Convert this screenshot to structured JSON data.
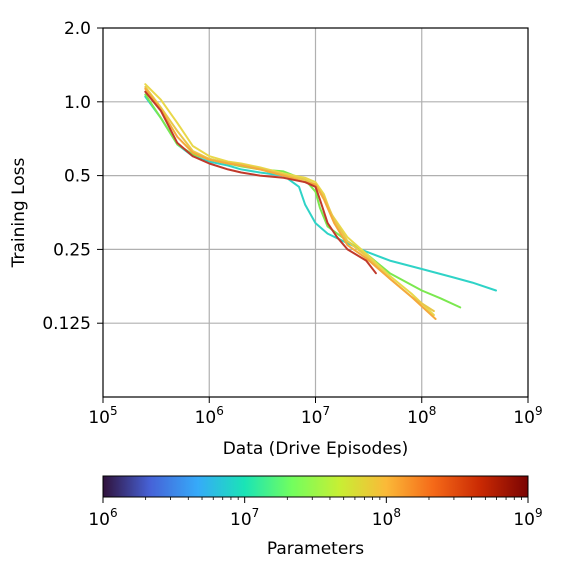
{
  "chart_data": {
    "type": "line",
    "title": "",
    "xlabel": "Data (Drive Episodes)",
    "ylabel": "Training Loss",
    "xscale": "log",
    "yscale": "log",
    "xlim": [
      100000,
      1000000000
    ],
    "ylim": [
      0.0625,
      2.0
    ],
    "grid": true,
    "x_ticks": [
      {
        "value": 100000,
        "base": "10",
        "exp": "5"
      },
      {
        "value": 1000000,
        "base": "10",
        "exp": "6"
      },
      {
        "value": 10000000,
        "base": "10",
        "exp": "7"
      },
      {
        "value": 100000000,
        "base": "10",
        "exp": "8"
      },
      {
        "value": 1000000000,
        "base": "10",
        "exp": "9"
      }
    ],
    "y_ticks": [
      {
        "value": 2.0,
        "label": "2.0"
      },
      {
        "value": 1.0,
        "label": "1.0"
      },
      {
        "value": 0.5,
        "label": "0.5"
      },
      {
        "value": 0.25,
        "label": "0.25"
      },
      {
        "value": 0.125,
        "label": "0.125"
      }
    ],
    "series": [
      {
        "color": "#2fd3c7",
        "points": [
          [
            250000,
            1.05
          ],
          [
            350000,
            0.86
          ],
          [
            500000,
            0.67
          ],
          [
            700000,
            0.6
          ],
          [
            1000000,
            0.57
          ],
          [
            1500000,
            0.55
          ],
          [
            2000000,
            0.53
          ],
          [
            3000000,
            0.515
          ],
          [
            5000000,
            0.5
          ],
          [
            7000000,
            0.45
          ],
          [
            8000000,
            0.38
          ],
          [
            10000000,
            0.32
          ],
          [
            13000000,
            0.29
          ],
          [
            20000000,
            0.265
          ],
          [
            30000000,
            0.245
          ],
          [
            50000000,
            0.225
          ],
          [
            100000000,
            0.208
          ],
          [
            200000000,
            0.192
          ],
          [
            300000000,
            0.183
          ],
          [
            500000000,
            0.17
          ]
        ]
      },
      {
        "color": "#7be84f",
        "points": [
          [
            250000,
            1.07
          ],
          [
            350000,
            0.86
          ],
          [
            500000,
            0.67
          ],
          [
            700000,
            0.61
          ],
          [
            1000000,
            0.585
          ],
          [
            1500000,
            0.56
          ],
          [
            2000000,
            0.545
          ],
          [
            3000000,
            0.53
          ],
          [
            5000000,
            0.52
          ],
          [
            8000000,
            0.48
          ],
          [
            10000000,
            0.43
          ],
          [
            11000000,
            0.37
          ],
          [
            13000000,
            0.31
          ],
          [
            20000000,
            0.27
          ],
          [
            30000000,
            0.24
          ],
          [
            50000000,
            0.2
          ],
          [
            100000000,
            0.17
          ],
          [
            150000000,
            0.158
          ],
          [
            230000000,
            0.145
          ]
        ]
      },
      {
        "color": "#e9d84a",
        "points": [
          [
            250000,
            1.18
          ],
          [
            350000,
            1.02
          ],
          [
            500000,
            0.82
          ],
          [
            700000,
            0.66
          ],
          [
            1000000,
            0.6
          ],
          [
            1500000,
            0.57
          ],
          [
            2000000,
            0.56
          ],
          [
            3000000,
            0.54
          ],
          [
            5000000,
            0.51
          ],
          [
            8000000,
            0.49
          ],
          [
            10000000,
            0.47
          ],
          [
            12000000,
            0.42
          ],
          [
            14000000,
            0.35
          ],
          [
            20000000,
            0.28
          ],
          [
            30000000,
            0.24
          ],
          [
            50000000,
            0.195
          ],
          [
            80000000,
            0.165
          ],
          [
            130000000,
            0.135
          ]
        ]
      },
      {
        "color": "#e8c84a",
        "points": [
          [
            250000,
            1.15
          ],
          [
            350000,
            0.95
          ],
          [
            500000,
            0.76
          ],
          [
            700000,
            0.63
          ],
          [
            1000000,
            0.585
          ],
          [
            1500000,
            0.565
          ],
          [
            2000000,
            0.555
          ],
          [
            3000000,
            0.535
          ],
          [
            5000000,
            0.505
          ],
          [
            8000000,
            0.48
          ],
          [
            10000000,
            0.46
          ],
          [
            12000000,
            0.41
          ],
          [
            15000000,
            0.33
          ],
          [
            20000000,
            0.27
          ],
          [
            30000000,
            0.235
          ],
          [
            50000000,
            0.19
          ],
          [
            80000000,
            0.16
          ],
          [
            130000000,
            0.14
          ]
        ]
      },
      {
        "color": "#f5a93c",
        "points": [
          [
            250000,
            1.13
          ],
          [
            350000,
            0.93
          ],
          [
            500000,
            0.72
          ],
          [
            700000,
            0.62
          ],
          [
            1000000,
            0.58
          ],
          [
            1500000,
            0.56
          ],
          [
            2000000,
            0.55
          ],
          [
            3000000,
            0.53
          ],
          [
            5000000,
            0.5
          ],
          [
            8000000,
            0.47
          ],
          [
            10000000,
            0.46
          ],
          [
            12000000,
            0.4
          ],
          [
            15000000,
            0.32
          ],
          [
            20000000,
            0.26
          ],
          [
            30000000,
            0.23
          ],
          [
            50000000,
            0.19
          ],
          [
            80000000,
            0.16
          ],
          [
            135000000,
            0.13
          ]
        ]
      },
      {
        "color": "#c0392b",
        "points": [
          [
            250000,
            1.1
          ],
          [
            350000,
            0.92
          ],
          [
            500000,
            0.68
          ],
          [
            700000,
            0.6
          ],
          [
            1000000,
            0.56
          ],
          [
            1500000,
            0.53
          ],
          [
            2000000,
            0.515
          ],
          [
            3000000,
            0.5
          ],
          [
            5000000,
            0.49
          ],
          [
            8000000,
            0.47
          ],
          [
            10000000,
            0.45
          ],
          [
            11000000,
            0.4
          ],
          [
            13000000,
            0.32
          ],
          [
            16000000,
            0.28
          ],
          [
            20000000,
            0.25
          ],
          [
            30000000,
            0.225
          ],
          [
            37000000,
            0.2
          ]
        ]
      }
    ],
    "colorbar": {
      "label": "Parameters",
      "scale": "log",
      "range": [
        1000000,
        1000000000
      ],
      "colormap": "turbo",
      "ticks": [
        {
          "value": 1000000,
          "base": "10",
          "exp": "6"
        },
        {
          "value": 10000000,
          "base": "10",
          "exp": "7"
        },
        {
          "value": 100000000,
          "base": "10",
          "exp": "8"
        },
        {
          "value": 1000000000,
          "base": "10",
          "exp": "9"
        }
      ],
      "stops": [
        "#30123b",
        "#4662d7",
        "#36aaf9",
        "#1ae4b6",
        "#72fe5e",
        "#c7ef34",
        "#fbb938",
        "#f56918",
        "#c92903",
        "#7a0403"
      ]
    }
  }
}
